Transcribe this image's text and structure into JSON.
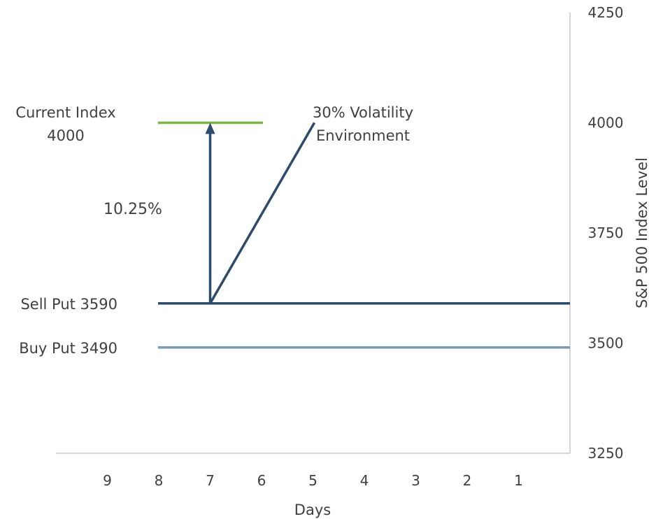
{
  "chart_data": {
    "type": "line",
    "xlabel": "Days",
    "ylabel": "S&P 500 Index Level",
    "x_ticks": [
      9,
      8,
      7,
      6,
      5,
      4,
      3,
      2,
      1
    ],
    "x_range_reversed": [
      10,
      0
    ],
    "ylim": [
      3250,
      4250
    ],
    "y_ticks": [
      3250,
      3500,
      3750,
      4000,
      4250
    ],
    "y_axis_side": "right",
    "grid": false,
    "colors": {
      "current_index": "#7ab547",
      "sell_put": "#2e4a6b",
      "buy_put": "#7b9cb0",
      "volatility_line": "#2e4a6b",
      "arrow": "#2e4a6b",
      "axis": "#c8c8c8",
      "text": "#404040"
    },
    "series": [
      {
        "name": "Current Index 4000",
        "type": "hline",
        "value": 4000,
        "x_from": 8,
        "x_to": 6
      },
      {
        "name": "Sell Put 3590",
        "type": "hline",
        "value": 3590,
        "x_from": 8,
        "x_to": 0
      },
      {
        "name": "Buy Put 3490",
        "type": "hline",
        "value": 3490,
        "x_from": 8,
        "x_to": 0
      },
      {
        "name": "30% Volatility Environment",
        "type": "segment",
        "points": [
          [
            7,
            3590
          ],
          [
            5,
            4000
          ]
        ]
      }
    ],
    "arrow": {
      "x": 7,
      "from": 3590,
      "to": 4000,
      "label": "10.25%"
    },
    "annotations": {
      "current_index_line1": "Current Index",
      "current_index_line2": "4000",
      "volatility_line1": "30% Volatility",
      "volatility_line2": "Environment",
      "sell_put": "Sell Put 3590",
      "buy_put": "Buy Put 3490",
      "arrow_label": "10.25%"
    }
  }
}
